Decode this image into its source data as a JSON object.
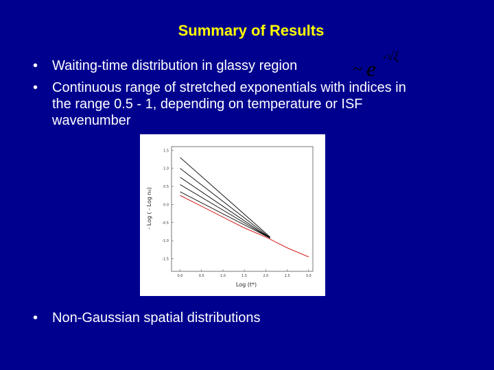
{
  "slide": {
    "title": "Summary of Results",
    "bullets": [
      {
        "marker": "•",
        "text": "Waiting-time distribution in glassy region"
      },
      {
        "marker": "•",
        "text": "Continuous range of stretched exponentials with indices in the range 0.5 - 1, depending on temperature or ISF wavenumber"
      },
      {
        "marker": "•",
        "text": "Non-Gaussian spatial distributions"
      }
    ],
    "formula": {
      "tilde": "~",
      "base": "e",
      "exponent": "-√ξ"
    }
  },
  "colors": {
    "background": "#00008f",
    "title": "#ffff00",
    "text": "#ffffff",
    "series_black": "#000000",
    "series_red": "#cc0000"
  },
  "chart_data": {
    "type": "line",
    "xlabel": "Log (t*)",
    "ylabel": "- Log ( - Log n₀)",
    "xlim": [
      -0.2,
      3.1
    ],
    "ylim": [
      -1.85,
      1.6
    ],
    "x_ticks": [
      "0.0",
      "0.5",
      "1.0",
      "1.5",
      "2.0",
      "2.5",
      "3.0"
    ],
    "y_ticks": [
      "1.5",
      "1.0",
      "0.5",
      "0.0",
      "-0.5",
      "-1.0",
      "-1.5"
    ],
    "series": [
      {
        "color": "black",
        "x": [
          0.0,
          2.1
        ],
        "y": [
          1.3,
          -0.9
        ]
      },
      {
        "color": "black",
        "x": [
          0.0,
          2.1
        ],
        "y": [
          1.0,
          -0.92
        ]
      },
      {
        "color": "black",
        "x": [
          0.0,
          2.1
        ],
        "y": [
          0.75,
          -0.93
        ]
      },
      {
        "color": "black",
        "x": [
          0.0,
          2.1
        ],
        "y": [
          0.55,
          -0.93
        ]
      },
      {
        "color": "black",
        "x": [
          0.0,
          2.1
        ],
        "y": [
          0.35,
          -0.93
        ]
      },
      {
        "color": "red",
        "x": [
          0.0,
          0.5,
          1.0,
          1.5,
          2.0,
          2.5,
          3.0
        ],
        "y": [
          0.25,
          -0.05,
          -0.35,
          -0.65,
          -0.9,
          -1.2,
          -1.45
        ]
      }
    ]
  }
}
